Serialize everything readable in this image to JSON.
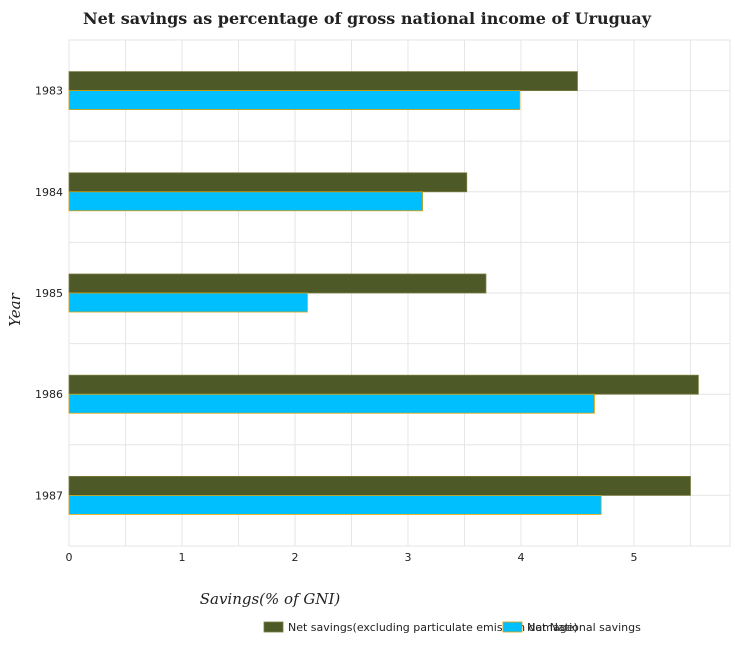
{
  "chart_data": {
    "type": "bar",
    "orientation": "horizontal",
    "title": "Net savings as percentage of gross national income of Uruguay",
    "xlabel": "Savings(% of GNI)",
    "ylabel": "Year",
    "categories": [
      "1983",
      "1984",
      "1985",
      "1986",
      "1987"
    ],
    "series": [
      {
        "name": "Net savings(excluding particulate emission damage)",
        "color": "#4d5a28",
        "values": [
          4.5,
          3.52,
          3.69,
          5.57,
          5.5
        ]
      },
      {
        "name": "Net National savings",
        "color": "#00bfff",
        "values": [
          3.99,
          3.13,
          2.11,
          4.65,
          4.71
        ]
      }
    ],
    "xlim": [
      0,
      5.85
    ],
    "xticks": [
      "0",
      "1",
      "2",
      "3",
      "4",
      "5"
    ],
    "grid": true,
    "legend": "bottom-right"
  }
}
